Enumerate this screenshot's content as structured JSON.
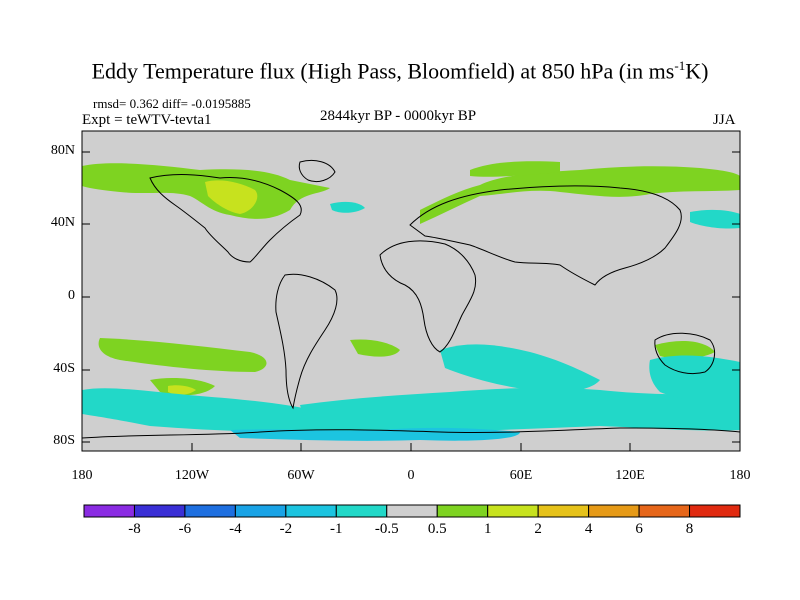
{
  "title": "Eddy Temperature flux (High Pass, Bloomfield) at 850 hPa (in ms",
  "title_sup": "-1",
  "title_end": "K)",
  "stats": "rmsd= 0.362  diff= -0.0195885",
  "expt": "Expt = teWTV-tevta1",
  "period": "2844kyr BP - 0000kyr BP",
  "season": "JJA",
  "lat_ticks": [
    "80N",
    "40N",
    "0",
    "40S",
    "80S"
  ],
  "lon_ticks": [
    "180",
    "120W",
    "60W",
    "0",
    "60E",
    "120E",
    "180"
  ],
  "colorbar": {
    "labels": [
      "-8",
      "-6",
      "-4",
      "-2",
      "-1",
      "-0.5",
      "0.5",
      "1",
      "2",
      "4",
      "6",
      "8"
    ],
    "colors": [
      "#8a2be2",
      "#3a2fd6",
      "#1e6fe0",
      "#19a3e6",
      "#1cc4e0",
      "#22d8c8",
      "#cfcfcf",
      "#7ed321",
      "#c7e21e",
      "#e6c21a",
      "#e69a17",
      "#e6661a",
      "#e02a10"
    ]
  },
  "field": {
    "background": "#cfcfcf",
    "coastline_color": "#000000"
  }
}
